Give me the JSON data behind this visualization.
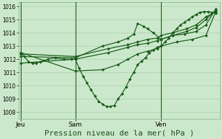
{
  "background_color": "#cce8cc",
  "plot_bg_color": "#cce8cc",
  "grid_color": "#aaccaa",
  "line_color": "#1a5c1a",
  "marker_color": "#1a5c1a",
  "xlabel": "Pression niveau de la mer( hPa )",
  "xlabel_fontsize": 8,
  "ylim": [
    1007.5,
    1016.3
  ],
  "yticks": [
    1008,
    1009,
    1010,
    1011,
    1012,
    1013,
    1014,
    1015,
    1016
  ],
  "xtick_labels": [
    "Jeu",
    "Sam",
    "Ven"
  ],
  "xtick_positions": [
    0.0,
    0.28,
    0.72
  ],
  "vline_positions": [
    0.0,
    0.28,
    0.72
  ],
  "series": [
    {
      "x": [
        0.0,
        0.02,
        0.04,
        0.06,
        0.08,
        0.1,
        0.14,
        0.18,
        0.22,
        0.26,
        0.28,
        0.3,
        0.32,
        0.34,
        0.36,
        0.38,
        0.4,
        0.42,
        0.44,
        0.46,
        0.48,
        0.5,
        0.52,
        0.54,
        0.56,
        0.58,
        0.6,
        0.62,
        0.64,
        0.66,
        0.68,
        0.7,
        0.72,
        0.74,
        0.76,
        0.78,
        0.8,
        0.82,
        0.84,
        0.86,
        0.88,
        0.9,
        0.92,
        0.94,
        0.96,
        0.98,
        1.0
      ],
      "y": [
        1012.5,
        1012.2,
        1011.8,
        1011.7,
        1011.7,
        1011.8,
        1012.0,
        1012.1,
        1012.0,
        1012.0,
        1012.0,
        1011.3,
        1010.7,
        1010.2,
        1009.7,
        1009.2,
        1008.8,
        1008.6,
        1008.4,
        1008.4,
        1008.5,
        1009.0,
        1009.4,
        1009.9,
        1010.5,
        1011.0,
        1011.6,
        1011.85,
        1012.1,
        1012.5,
        1012.7,
        1012.9,
        1013.0,
        1013.3,
        1013.6,
        1014.0,
        1014.3,
        1014.6,
        1014.8,
        1015.0,
        1015.2,
        1015.4,
        1015.55,
        1015.6,
        1015.6,
        1015.55,
        1015.5
      ]
    },
    {
      "x": [
        0.0,
        0.28,
        0.45,
        0.55,
        0.6,
        0.65,
        0.7,
        0.72,
        0.78,
        0.85,
        0.9,
        0.95,
        1.0
      ],
      "y": [
        1012.4,
        1012.2,
        1012.8,
        1013.1,
        1013.3,
        1013.5,
        1013.6,
        1013.8,
        1014.0,
        1014.3,
        1014.6,
        1015.2,
        1015.6
      ]
    },
    {
      "x": [
        0.0,
        0.28,
        0.45,
        0.55,
        0.6,
        0.65,
        0.7,
        0.72,
        0.78,
        0.85,
        0.9,
        0.95,
        1.0
      ],
      "y": [
        1011.7,
        1012.0,
        1012.5,
        1012.9,
        1013.1,
        1013.2,
        1013.4,
        1013.5,
        1013.8,
        1014.1,
        1014.4,
        1015.0,
        1015.7
      ]
    },
    {
      "x": [
        0.0,
        0.28,
        0.42,
        0.5,
        0.55,
        0.58,
        0.6,
        0.63,
        0.65,
        0.68,
        0.72,
        0.78,
        0.84,
        0.9,
        0.95,
        1.0
      ],
      "y": [
        1012.2,
        1012.1,
        1013.0,
        1013.3,
        1013.6,
        1013.9,
        1014.7,
        1014.5,
        1014.3,
        1014.0,
        1013.5,
        1013.8,
        1013.9,
        1014.1,
        1014.6,
        1015.8
      ]
    },
    {
      "x": [
        0.0,
        0.28,
        0.42,
        0.5,
        0.55,
        0.6,
        0.65,
        0.7,
        0.72,
        0.8,
        0.88,
        0.95,
        1.0
      ],
      "y": [
        1012.5,
        1011.1,
        1011.2,
        1011.6,
        1012.0,
        1012.4,
        1012.6,
        1012.8,
        1013.0,
        1013.3,
        1013.5,
        1013.8,
        1015.6
      ]
    }
  ]
}
